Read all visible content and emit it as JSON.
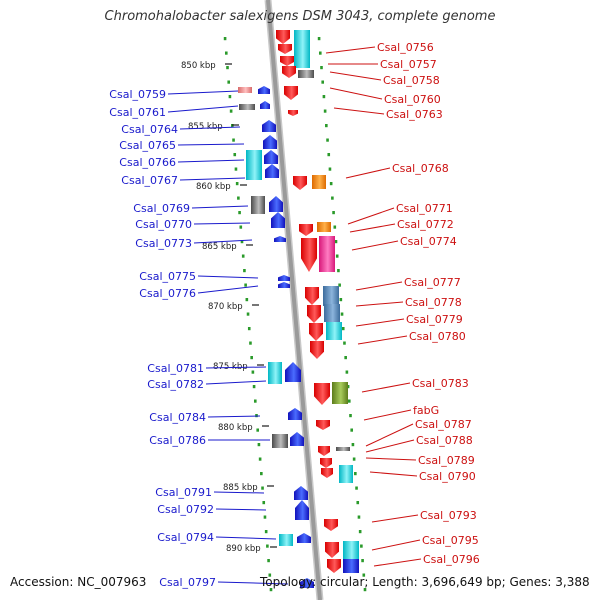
{
  "title": "Chromohalobacter salexigens DSM 3043, complete genome",
  "accession": "Accession: NC_007963",
  "summary": "Topology: circular; Length: 3,696,649 bp; Genes: 3,388",
  "colors": {
    "left_label": "#1a1acc",
    "right_label": "#cc1111",
    "backbone": "#9a9a9a",
    "tick": "#2a9a2a"
  },
  "scale_ticks": [
    "850 kbp",
    "855 kbp",
    "860 kbp",
    "865 kbp",
    "870 kbp",
    "875 kbp",
    "880 kbp",
    "885 kbp",
    "890 kbp"
  ],
  "left_genes": [
    "Csal_0759",
    "Csal_0761",
    "Csal_0764",
    "Csal_0765",
    "Csal_0766",
    "Csal_0767",
    "Csal_0769",
    "Csal_0770",
    "Csal_0773",
    "Csal_0775",
    "Csal_0776",
    "Csal_0781",
    "Csal_0782",
    "Csal_0784",
    "Csal_0786",
    "Csal_0791",
    "Csal_0792",
    "Csal_0794",
    "Csal_0797"
  ],
  "right_genes": [
    "Csal_0756",
    "Csal_0757",
    "Csal_0758",
    "Csal_0760",
    "Csal_0763",
    "Csal_0768",
    "Csal_0771",
    "Csal_0772",
    "Csal_0774",
    "Csal_0777",
    "Csal_0778",
    "Csal_0779",
    "Csal_0780",
    "Csal_0783",
    "fabG",
    "Csal_0787",
    "Csal_0788",
    "Csal_0789",
    "Csal_0790",
    "Csal_0793",
    "Csal_0795",
    "Csal_0796"
  ]
}
